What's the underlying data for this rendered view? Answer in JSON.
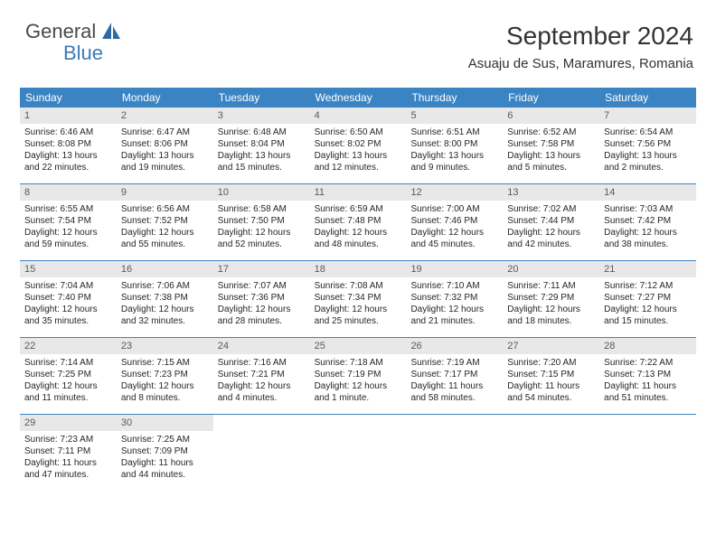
{
  "logo": {
    "text1": "General",
    "text2": "Blue"
  },
  "title": "September 2024",
  "location": "Asuaju de Sus, Maramures, Romania",
  "colors": {
    "header_bg": "#3b84c4",
    "header_text": "#ffffff",
    "daynum_bg": "#e8e8e8",
    "daynum_text": "#5a5a5a",
    "body_text": "#262626",
    "rule": "#3b84c4"
  },
  "day_headers": [
    "Sunday",
    "Monday",
    "Tuesday",
    "Wednesday",
    "Thursday",
    "Friday",
    "Saturday"
  ],
  "weeks": [
    [
      {
        "n": "1",
        "sr": "Sunrise: 6:46 AM",
        "ss": "Sunset: 8:08 PM",
        "dl": "Daylight: 13 hours and 22 minutes."
      },
      {
        "n": "2",
        "sr": "Sunrise: 6:47 AM",
        "ss": "Sunset: 8:06 PM",
        "dl": "Daylight: 13 hours and 19 minutes."
      },
      {
        "n": "3",
        "sr": "Sunrise: 6:48 AM",
        "ss": "Sunset: 8:04 PM",
        "dl": "Daylight: 13 hours and 15 minutes."
      },
      {
        "n": "4",
        "sr": "Sunrise: 6:50 AM",
        "ss": "Sunset: 8:02 PM",
        "dl": "Daylight: 13 hours and 12 minutes."
      },
      {
        "n": "5",
        "sr": "Sunrise: 6:51 AM",
        "ss": "Sunset: 8:00 PM",
        "dl": "Daylight: 13 hours and 9 minutes."
      },
      {
        "n": "6",
        "sr": "Sunrise: 6:52 AM",
        "ss": "Sunset: 7:58 PM",
        "dl": "Daylight: 13 hours and 5 minutes."
      },
      {
        "n": "7",
        "sr": "Sunrise: 6:54 AM",
        "ss": "Sunset: 7:56 PM",
        "dl": "Daylight: 13 hours and 2 minutes."
      }
    ],
    [
      {
        "n": "8",
        "sr": "Sunrise: 6:55 AM",
        "ss": "Sunset: 7:54 PM",
        "dl": "Daylight: 12 hours and 59 minutes."
      },
      {
        "n": "9",
        "sr": "Sunrise: 6:56 AM",
        "ss": "Sunset: 7:52 PM",
        "dl": "Daylight: 12 hours and 55 minutes."
      },
      {
        "n": "10",
        "sr": "Sunrise: 6:58 AM",
        "ss": "Sunset: 7:50 PM",
        "dl": "Daylight: 12 hours and 52 minutes."
      },
      {
        "n": "11",
        "sr": "Sunrise: 6:59 AM",
        "ss": "Sunset: 7:48 PM",
        "dl": "Daylight: 12 hours and 48 minutes."
      },
      {
        "n": "12",
        "sr": "Sunrise: 7:00 AM",
        "ss": "Sunset: 7:46 PM",
        "dl": "Daylight: 12 hours and 45 minutes."
      },
      {
        "n": "13",
        "sr": "Sunrise: 7:02 AM",
        "ss": "Sunset: 7:44 PM",
        "dl": "Daylight: 12 hours and 42 minutes."
      },
      {
        "n": "14",
        "sr": "Sunrise: 7:03 AM",
        "ss": "Sunset: 7:42 PM",
        "dl": "Daylight: 12 hours and 38 minutes."
      }
    ],
    [
      {
        "n": "15",
        "sr": "Sunrise: 7:04 AM",
        "ss": "Sunset: 7:40 PM",
        "dl": "Daylight: 12 hours and 35 minutes."
      },
      {
        "n": "16",
        "sr": "Sunrise: 7:06 AM",
        "ss": "Sunset: 7:38 PM",
        "dl": "Daylight: 12 hours and 32 minutes."
      },
      {
        "n": "17",
        "sr": "Sunrise: 7:07 AM",
        "ss": "Sunset: 7:36 PM",
        "dl": "Daylight: 12 hours and 28 minutes."
      },
      {
        "n": "18",
        "sr": "Sunrise: 7:08 AM",
        "ss": "Sunset: 7:34 PM",
        "dl": "Daylight: 12 hours and 25 minutes."
      },
      {
        "n": "19",
        "sr": "Sunrise: 7:10 AM",
        "ss": "Sunset: 7:32 PM",
        "dl": "Daylight: 12 hours and 21 minutes."
      },
      {
        "n": "20",
        "sr": "Sunrise: 7:11 AM",
        "ss": "Sunset: 7:29 PM",
        "dl": "Daylight: 12 hours and 18 minutes."
      },
      {
        "n": "21",
        "sr": "Sunrise: 7:12 AM",
        "ss": "Sunset: 7:27 PM",
        "dl": "Daylight: 12 hours and 15 minutes."
      }
    ],
    [
      {
        "n": "22",
        "sr": "Sunrise: 7:14 AM",
        "ss": "Sunset: 7:25 PM",
        "dl": "Daylight: 12 hours and 11 minutes."
      },
      {
        "n": "23",
        "sr": "Sunrise: 7:15 AM",
        "ss": "Sunset: 7:23 PM",
        "dl": "Daylight: 12 hours and 8 minutes."
      },
      {
        "n": "24",
        "sr": "Sunrise: 7:16 AM",
        "ss": "Sunset: 7:21 PM",
        "dl": "Daylight: 12 hours and 4 minutes."
      },
      {
        "n": "25",
        "sr": "Sunrise: 7:18 AM",
        "ss": "Sunset: 7:19 PM",
        "dl": "Daylight: 12 hours and 1 minute."
      },
      {
        "n": "26",
        "sr": "Sunrise: 7:19 AM",
        "ss": "Sunset: 7:17 PM",
        "dl": "Daylight: 11 hours and 58 minutes."
      },
      {
        "n": "27",
        "sr": "Sunrise: 7:20 AM",
        "ss": "Sunset: 7:15 PM",
        "dl": "Daylight: 11 hours and 54 minutes."
      },
      {
        "n": "28",
        "sr": "Sunrise: 7:22 AM",
        "ss": "Sunset: 7:13 PM",
        "dl": "Daylight: 11 hours and 51 minutes."
      }
    ],
    [
      {
        "n": "29",
        "sr": "Sunrise: 7:23 AM",
        "ss": "Sunset: 7:11 PM",
        "dl": "Daylight: 11 hours and 47 minutes."
      },
      {
        "n": "30",
        "sr": "Sunrise: 7:25 AM",
        "ss": "Sunset: 7:09 PM",
        "dl": "Daylight: 11 hours and 44 minutes."
      },
      {
        "empty": true
      },
      {
        "empty": true
      },
      {
        "empty": true
      },
      {
        "empty": true
      },
      {
        "empty": true
      }
    ]
  ]
}
